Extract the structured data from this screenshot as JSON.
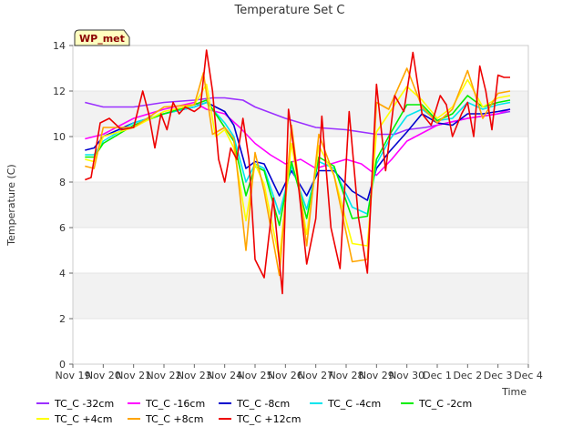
{
  "chart_data": {
    "type": "line",
    "title": "Temperature Set C",
    "xlabel": "Time",
    "ylabel": "Temperature (C)",
    "ylim": [
      0,
      14
    ],
    "yticks": [
      0,
      2,
      4,
      6,
      8,
      10,
      12,
      14
    ],
    "xlim": [
      0,
      15
    ],
    "xtick_labels": [
      "Nov 19",
      "Nov 20",
      "Nov 21",
      "Nov 22",
      "Nov 23",
      "Nov 24",
      "Nov 25",
      "Nov 26",
      "Nov 27",
      "Nov 28",
      "Nov 29",
      "Nov 30",
      "Dec 1",
      "Dec 2",
      "Dec 3",
      "Dec 4"
    ],
    "badge": "WP_met",
    "grid": "alternating horizontal bands",
    "legend_position": "bottom",
    "series": [
      {
        "name": "TC_C -32cm",
        "color": "#9b30ff",
        "x": [
          0.4,
          1,
          2,
          3,
          4,
          4.6,
          5,
          5.6,
          6,
          7,
          8,
          9,
          10,
          10.6,
          11,
          11.6,
          12,
          13,
          14,
          14.4
        ],
        "y": [
          11.5,
          11.3,
          11.3,
          11.5,
          11.6,
          11.7,
          11.7,
          11.6,
          11.3,
          10.8,
          10.4,
          10.3,
          10.1,
          10.1,
          10.3,
          10.4,
          10.5,
          10.8,
          11.0,
          11.1
        ]
      },
      {
        "name": "TC_C -16cm",
        "color": "#ff00ff",
        "x": [
          0.4,
          1,
          2,
          3,
          4,
          4.4,
          5,
          5.5,
          6,
          6.5,
          7,
          7.5,
          8,
          8.5,
          9,
          9.5,
          10,
          10.5,
          11,
          12,
          13,
          14,
          14.4
        ],
        "y": [
          9.9,
          10.1,
          10.8,
          11.2,
          11.5,
          11.2,
          11.0,
          10.4,
          9.7,
          9.2,
          8.8,
          9.0,
          8.6,
          8.8,
          9.0,
          8.8,
          8.3,
          9.0,
          9.8,
          10.5,
          10.8,
          11.0,
          11.2
        ]
      },
      {
        "name": "TC_C -8cm",
        "color": "#0000cd",
        "x": [
          0.4,
          0.7,
          1,
          2,
          3,
          4,
          4.4,
          5,
          5.3,
          5.7,
          6,
          6.3,
          6.8,
          7.2,
          7.7,
          8.1,
          8.6,
          9.2,
          9.7,
          10,
          10.4,
          11,
          11.5,
          12,
          12.5,
          13,
          13.5,
          14,
          14.4
        ],
        "y": [
          9.4,
          9.5,
          10.0,
          10.6,
          11.0,
          11.3,
          11.5,
          11.1,
          10.5,
          8.6,
          8.9,
          8.8,
          7.4,
          8.5,
          7.4,
          8.5,
          8.5,
          7.6,
          7.2,
          8.6,
          9.3,
          10.2,
          11.0,
          10.6,
          10.5,
          11.0,
          11.0,
          11.1,
          11.2
        ]
      },
      {
        "name": "TC_C -4cm",
        "color": "#00e5ee",
        "x": [
          0.4,
          0.7,
          1,
          2,
          3,
          4,
          4.4,
          5,
          5.3,
          5.7,
          6,
          6.3,
          6.8,
          7.2,
          7.7,
          8.1,
          8.6,
          9.2,
          9.7,
          10,
          10.4,
          11,
          11.5,
          12,
          12.5,
          13,
          13.5,
          14,
          14.4
        ],
        "y": [
          9.2,
          9.2,
          9.8,
          10.6,
          11.0,
          11.3,
          11.5,
          10.6,
          10.0,
          8.0,
          8.8,
          8.6,
          6.6,
          8.7,
          6.8,
          8.9,
          8.6,
          6.9,
          6.6,
          8.8,
          9.8,
          10.9,
          11.2,
          10.7,
          10.8,
          11.5,
          11.2,
          11.4,
          11.5
        ]
      },
      {
        "name": "TC_C -2cm",
        "color": "#00ee00",
        "x": [
          0.4,
          0.7,
          1,
          2,
          3,
          4,
          4.4,
          5,
          5.3,
          5.7,
          6,
          6.3,
          6.8,
          7.2,
          7.7,
          8.1,
          8.6,
          9.2,
          9.7,
          10,
          10.4,
          11,
          11.5,
          12,
          12.5,
          13,
          13.5,
          14,
          14.4
        ],
        "y": [
          9.1,
          9.1,
          9.7,
          10.5,
          11.0,
          11.4,
          11.6,
          10.4,
          9.8,
          7.4,
          8.7,
          8.5,
          6.1,
          8.9,
          6.4,
          9.1,
          8.7,
          6.4,
          6.5,
          9.0,
          10.0,
          11.4,
          11.4,
          10.7,
          11.0,
          11.8,
          11.3,
          11.5,
          11.6
        ]
      },
      {
        "name": "TC_C +4cm",
        "color": "#ffff00",
        "x": [
          0.4,
          0.7,
          1,
          2,
          3,
          4,
          4.4,
          4.7,
          5,
          5.3,
          5.7,
          6,
          6.3,
          6.8,
          7.2,
          7.7,
          8.1,
          8.6,
          9.2,
          9.7,
          10,
          10.4,
          11,
          11.5,
          12,
          12.5,
          13,
          13.5,
          14,
          14.4
        ],
        "y": [
          9.0,
          8.9,
          10.0,
          10.4,
          11.1,
          11.4,
          12.3,
          10.0,
          10.3,
          9.5,
          6.3,
          8.8,
          7.9,
          4.6,
          9.7,
          5.7,
          9.6,
          8.3,
          5.3,
          5.2,
          10.2,
          11.0,
          12.2,
          11.6,
          10.8,
          11.3,
          12.5,
          11.3,
          11.7,
          11.8
        ]
      },
      {
        "name": "TC_C +8cm",
        "color": "#ffa500",
        "x": [
          0.4,
          0.7,
          1,
          2,
          3,
          4,
          4.3,
          4.6,
          5,
          5.3,
          5.7,
          6,
          6.3,
          6.8,
          7.2,
          7.7,
          8.1,
          8.6,
          9.2,
          9.7,
          10,
          10.4,
          11,
          11.5,
          12,
          12.5,
          13,
          13.5,
          14,
          14.4
        ],
        "y": [
          8.7,
          8.6,
          10.4,
          10.4,
          11.3,
          11.4,
          12.8,
          10.1,
          10.4,
          9.9,
          5.0,
          9.3,
          7.6,
          3.9,
          10.5,
          5.2,
          10.1,
          8.3,
          4.5,
          4.6,
          11.5,
          11.2,
          13.0,
          11.3,
          10.6,
          11.2,
          12.9,
          10.8,
          11.9,
          12.0
        ]
      },
      {
        "name": "TC_C +12cm",
        "color": "#ee0000",
        "x": [
          0.4,
          0.6,
          0.9,
          1.2,
          1.6,
          2,
          2.3,
          2.5,
          2.7,
          2.9,
          3.1,
          3.3,
          3.5,
          3.7,
          4,
          4.2,
          4.4,
          4.6,
          4.8,
          5,
          5.2,
          5.4,
          5.6,
          5.8,
          6,
          6.3,
          6.6,
          6.9,
          7.1,
          7.4,
          7.7,
          8,
          8.2,
          8.5,
          8.8,
          9.1,
          9.4,
          9.7,
          10,
          10.3,
          10.6,
          10.9,
          11.2,
          11.5,
          11.8,
          12.1,
          12.3,
          12.5,
          12.8,
          13,
          13.2,
          13.4,
          13.6,
          13.8,
          14,
          14.2,
          14.4
        ],
        "y": [
          8.1,
          8.2,
          10.6,
          10.8,
          10.3,
          10.4,
          12.0,
          11.0,
          9.5,
          11.0,
          10.3,
          11.5,
          11.0,
          11.3,
          11.1,
          11.3,
          13.8,
          12.0,
          9.0,
          8.0,
          9.5,
          9.0,
          10.8,
          9.0,
          4.6,
          3.8,
          7.3,
          3.1,
          11.2,
          8.2,
          4.4,
          6.4,
          10.9,
          6.0,
          4.2,
          11.1,
          6.5,
          4.0,
          12.3,
          8.5,
          11.8,
          11.1,
          13.7,
          11.0,
          10.5,
          11.8,
          11.4,
          10.0,
          11.0,
          11.5,
          10.0,
          13.1,
          12.0,
          10.3,
          12.7,
          12.6,
          12.6
        ]
      }
    ]
  }
}
